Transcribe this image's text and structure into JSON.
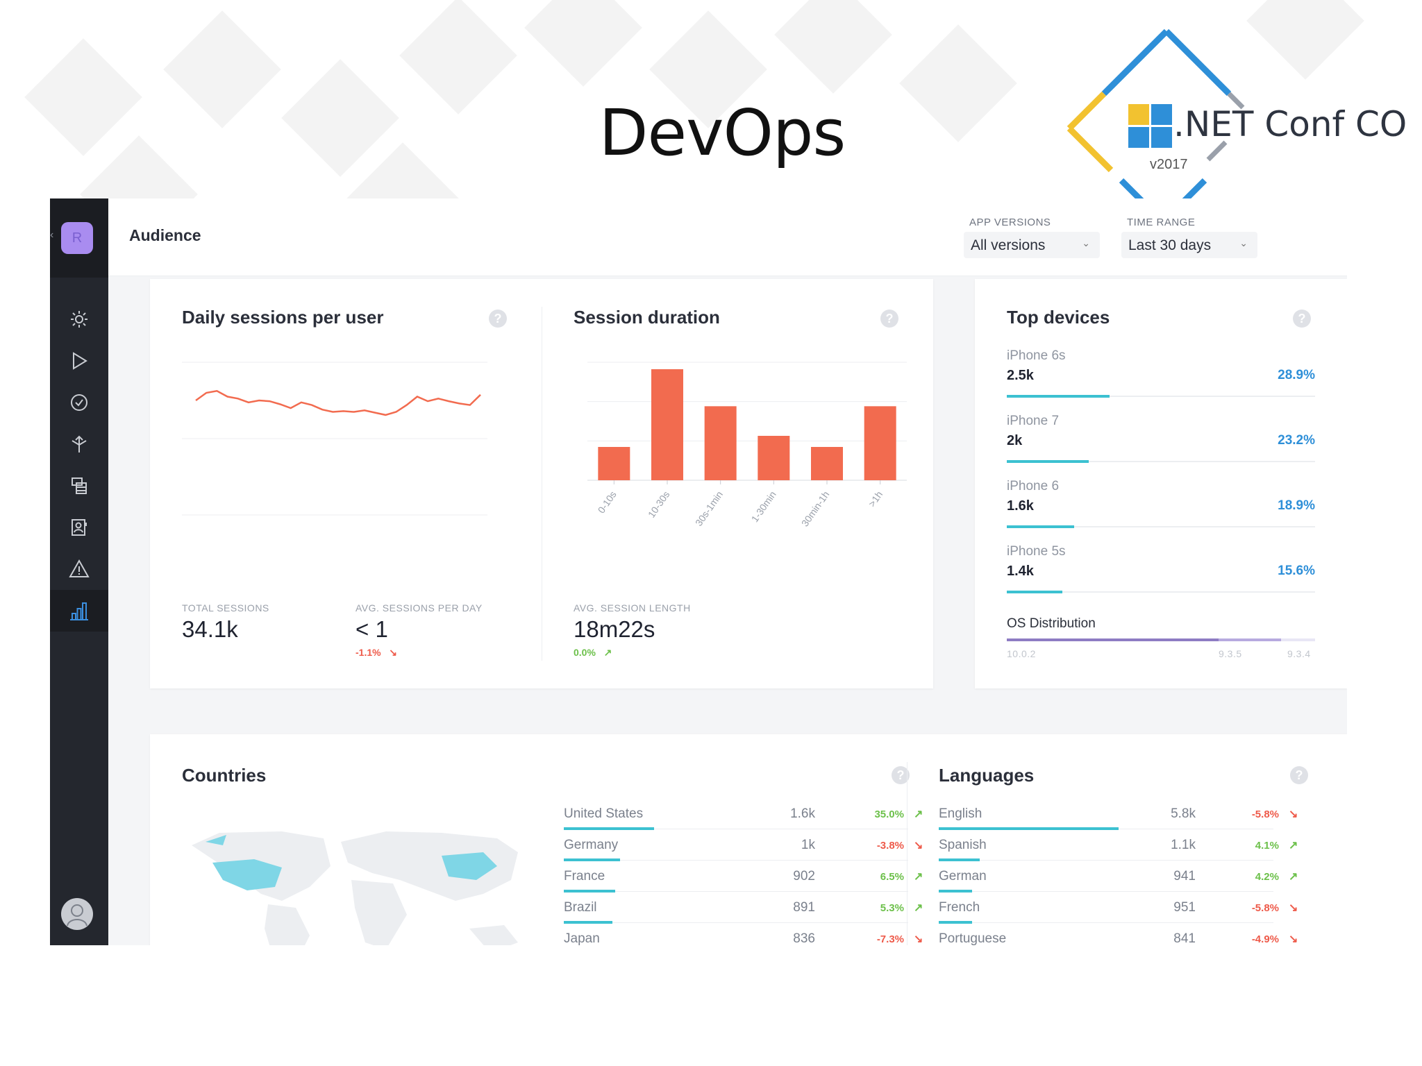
{
  "slide": {
    "title": "DevOps",
    "logo_text": ".NET Conf CO",
    "logo_version": "v2017"
  },
  "colors": {
    "accent_coral": "#f26b4f",
    "bar_teal": "#3cc1d1",
    "link_blue": "#2e8fd8",
    "negative": "#ee5a4a",
    "positive": "#6cc04a",
    "sidebar": "#24272e",
    "avatar_purple": "#a98cf0"
  },
  "sidebar": {
    "avatar_letter": "R",
    "items": [
      {
        "icon": "sun-icon"
      },
      {
        "icon": "play-icon"
      },
      {
        "icon": "check-circle-icon"
      },
      {
        "icon": "distribute-icon"
      },
      {
        "icon": "database-icon"
      },
      {
        "icon": "contacts-icon"
      },
      {
        "icon": "warning-icon"
      },
      {
        "icon": "analytics-icon"
      }
    ],
    "user_icon": "user-avatar-icon"
  },
  "header": {
    "title": "Audience",
    "app_versions_label": "APP VERSIONS",
    "app_versions_value": "All versions",
    "time_range_label": "TIME RANGE",
    "time_range_value": "Last 30 days"
  },
  "daily_sessions": {
    "title": "Daily sessions per user",
    "total_sessions_label": "TOTAL SESSIONS",
    "total_sessions_value": "34.1k",
    "avg_label": "AVG. SESSIONS PER DAY",
    "avg_value": "< 1",
    "avg_delta": "-1.1%"
  },
  "session_duration": {
    "title": "Session duration",
    "avg_label": "AVG. SESSION LENGTH",
    "avg_value": "18m22s",
    "avg_delta": "0.0%"
  },
  "chart_data": [
    {
      "type": "line",
      "y": [
        1.0,
        1.2,
        1.25,
        1.1,
        1.05,
        0.95,
        1.0,
        0.98,
        0.9,
        0.8,
        0.95,
        0.88,
        0.76,
        0.7,
        0.72,
        0.7,
        0.74,
        0.68,
        0.62,
        0.7,
        0.88,
        1.1,
        0.98,
        1.05,
        0.98,
        0.92,
        0.88,
        1.15
      ],
      "ylim": [
        -2.0,
        2.0
      ]
    },
    {
      "type": "bar",
      "categories": [
        "0-10s",
        "10-30s",
        "30s-1min",
        "1-30min",
        "30min-1h",
        ">1h"
      ],
      "values": [
        4.5,
        15,
        10,
        6,
        4.5,
        10
      ],
      "ylim": [
        0,
        15
      ]
    }
  ],
  "top_devices": {
    "title": "Top devices",
    "items": [
      {
        "name": "iPhone 6s",
        "value": "2.5k",
        "pct": "28.9%",
        "share": 0.289
      },
      {
        "name": "iPhone 7",
        "value": "2k",
        "pct": "23.2%",
        "share": 0.232
      },
      {
        "name": "iPhone 6",
        "value": "1.6k",
        "pct": "18.9%",
        "share": 0.189
      },
      {
        "name": "iPhone 5s",
        "value": "1.4k",
        "pct": "15.6%",
        "share": 0.156
      }
    ],
    "os_label": "OS Distribution",
    "os_versions": [
      "10.0.2",
      "9.3.5",
      "9.3.4"
    ]
  },
  "countries": {
    "title": "Countries",
    "rows": [
      {
        "name": "United States",
        "value": "1.6k",
        "pct": "35.0%",
        "trend": "up",
        "share": 0.35
      },
      {
        "name": "Germany",
        "value": "1k",
        "pct": "-3.8%",
        "trend": "down",
        "share": 0.22
      },
      {
        "name": "France",
        "value": "902",
        "pct": "6.5%",
        "trend": "up",
        "share": 0.2
      },
      {
        "name": "Brazil",
        "value": "891",
        "pct": "5.3%",
        "trend": "up",
        "share": 0.19
      },
      {
        "name": "Japan",
        "value": "836",
        "pct": "-7.3%",
        "trend": "down",
        "share": 0.18
      }
    ]
  },
  "languages": {
    "title": "Languages",
    "rows": [
      {
        "name": "English",
        "value": "5.8k",
        "pct": "-5.8%",
        "trend": "down",
        "share": 0.75
      },
      {
        "name": "Spanish",
        "value": "1.1k",
        "pct": "4.1%",
        "trend": "up",
        "share": 0.17
      },
      {
        "name": "German",
        "value": "941",
        "pct": "4.2%",
        "trend": "up",
        "share": 0.14
      },
      {
        "name": "French",
        "value": "951",
        "pct": "-5.8%",
        "trend": "down",
        "share": 0.14
      },
      {
        "name": "Portuguese",
        "value": "841",
        "pct": "-4.9%",
        "trend": "down",
        "share": 0.12
      }
    ]
  }
}
